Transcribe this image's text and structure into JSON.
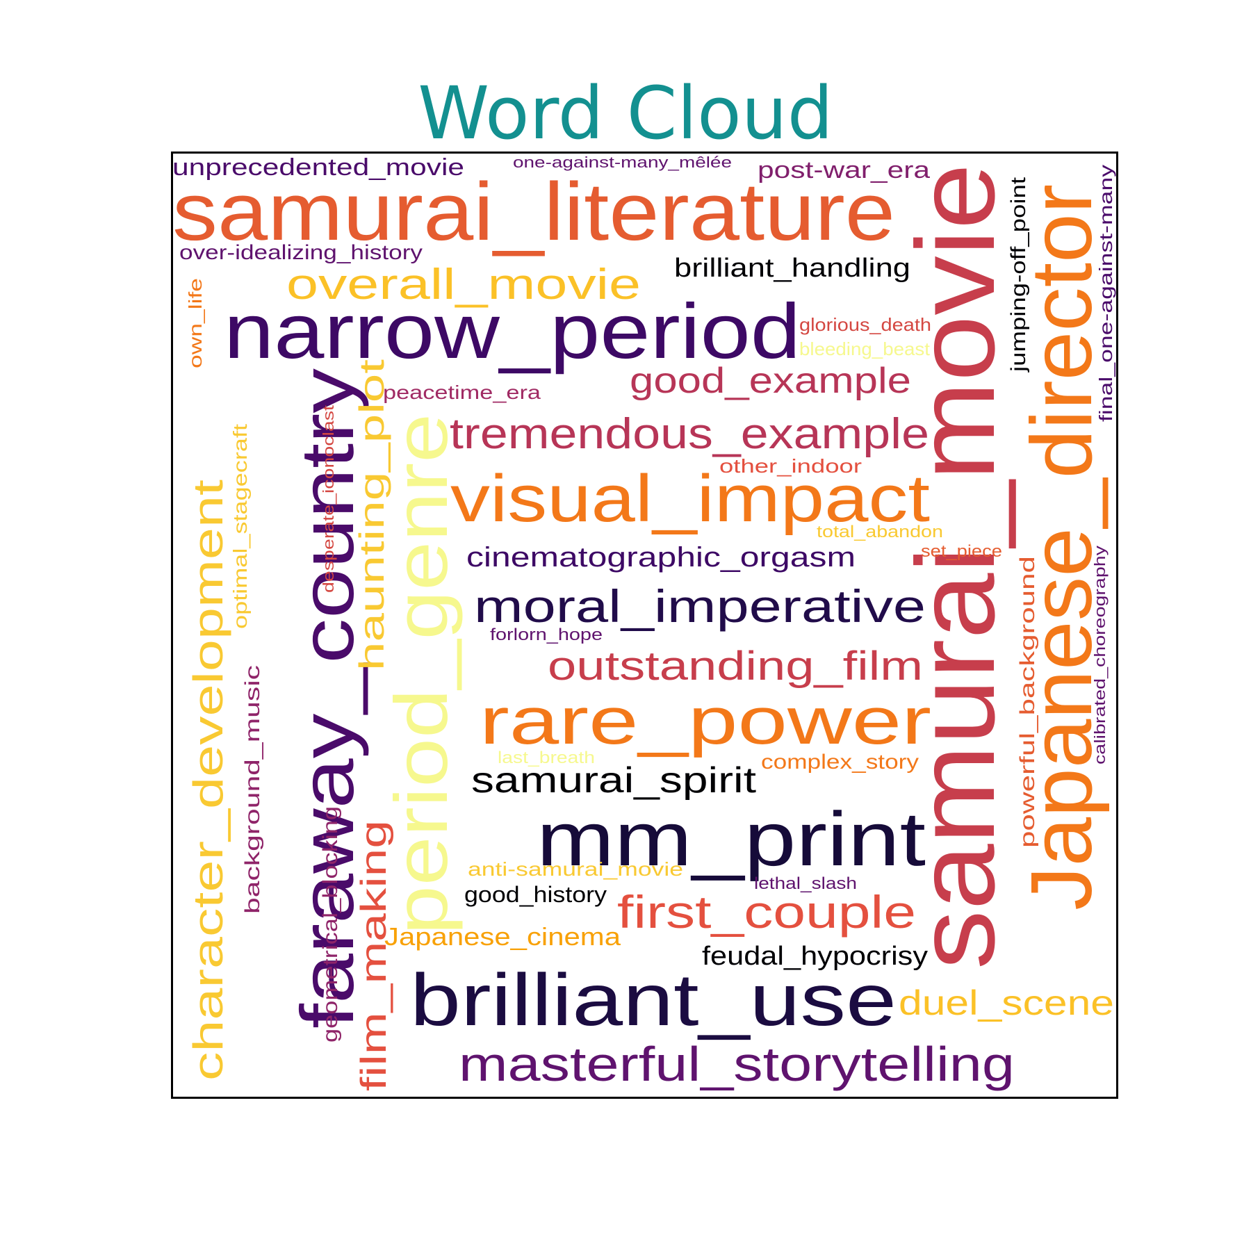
{
  "chart_data": {
    "type": "wordcloud",
    "title": "Word Cloud",
    "words": [
      {
        "text": "samurai_movie",
        "color": "#c73e4c",
        "vertical": true
      },
      {
        "text": "samurai_literature",
        "color": "#e55c30",
        "vertical": false
      },
      {
        "text": "Japanese_director",
        "color": "#f37819",
        "vertical": true
      },
      {
        "text": "narrow_period",
        "color": "#3d0965",
        "vertical": false
      },
      {
        "text": "faraway_country",
        "color": "#4a0b6a",
        "vertical": true
      },
      {
        "text": "period_genre",
        "color": "#f6f88e",
        "vertical": true
      },
      {
        "text": "mm_print",
        "color": "#160b39",
        "vertical": false
      },
      {
        "text": "brilliant_use",
        "color": "#1b0c41",
        "vertical": false
      },
      {
        "text": "rare_power",
        "color": "#f37819",
        "vertical": false
      },
      {
        "text": "visual_impact",
        "color": "#f37819",
        "vertical": false
      },
      {
        "text": "character_development",
        "color": "#f9c932",
        "vertical": true
      },
      {
        "text": "masterful_storytelling",
        "color": "#5f136e",
        "vertical": false
      },
      {
        "text": "moral_imperative",
        "color": "#210c4a",
        "vertical": false
      },
      {
        "text": "tremendous_example",
        "color": "#b73557",
        "vertical": false
      },
      {
        "text": "first_couple",
        "color": "#e4503f",
        "vertical": false
      },
      {
        "text": "overall_movie",
        "color": "#fbc127",
        "vertical": false
      },
      {
        "text": "haunting_plot",
        "color": "#f9c932",
        "vertical": true
      },
      {
        "text": "outstanding_film",
        "color": "#c73e4c",
        "vertical": false
      },
      {
        "text": "film_making",
        "color": "#e4503f",
        "vertical": true
      },
      {
        "text": "good_example",
        "color": "#b73557",
        "vertical": false
      },
      {
        "text": "duel_scene",
        "color": "#fbc127",
        "vertical": false
      },
      {
        "text": "samurai_spirit",
        "color": "#000004",
        "vertical": false
      },
      {
        "text": "cinematographic_orgasm",
        "color": "#3d0965",
        "vertical": false
      },
      {
        "text": "brilliant_handling",
        "color": "#000004",
        "vertical": false
      },
      {
        "text": "feudal_hypocrisy",
        "color": "#000004",
        "vertical": false
      },
      {
        "text": "powerful_background",
        "color": "#e55c30",
        "vertical": true
      },
      {
        "text": "Japanese_cinema",
        "color": "#f8a107",
        "vertical": false
      },
      {
        "text": "unprecedented_movie",
        "color": "#4a0b6a",
        "vertical": false
      },
      {
        "text": "post-war_era",
        "color": "#801f6c",
        "vertical": false
      },
      {
        "text": "background_music",
        "color": "#8f2469",
        "vertical": true
      },
      {
        "text": "jumping-off_point",
        "color": "#000004",
        "vertical": true
      },
      {
        "text": "optimal_stagecraft",
        "color": "#f9c932",
        "vertical": true
      },
      {
        "text": "over-idealizing_history",
        "color": "#5f136e",
        "vertical": false
      },
      {
        "text": "good_history",
        "color": "#000004",
        "vertical": false
      },
      {
        "text": "complex_story",
        "color": "#f37819",
        "vertical": false
      },
      {
        "text": "geometrical_blocking",
        "color": "#8f2469",
        "vertical": true
      },
      {
        "text": "final_one-against-many",
        "color": "#4a0b6a",
        "vertical": true
      },
      {
        "text": "peacetime_era",
        "color": "#a02a63",
        "vertical": false
      },
      {
        "text": "anti-samurai_movie",
        "color": "#f9c932",
        "vertical": false
      },
      {
        "text": "other_indoor",
        "color": "#e4503f",
        "vertical": false
      },
      {
        "text": "calibrated_choreography",
        "color": "#5f136e",
        "vertical": true
      },
      {
        "text": "glorious_death",
        "color": "#d44842",
        "vertical": false
      },
      {
        "text": "bleeding_beast",
        "color": "#f6f88e",
        "vertical": false
      },
      {
        "text": "desperate_iconoclast",
        "color": "#d44842",
        "vertical": true
      },
      {
        "text": "own_life",
        "color": "#f37819",
        "vertical": true
      },
      {
        "text": "total_abandon",
        "color": "#f9c932",
        "vertical": false
      },
      {
        "text": "set_piece",
        "color": "#e55c30",
        "vertical": false
      },
      {
        "text": "forlorn_hope",
        "color": "#5f136e",
        "vertical": false
      },
      {
        "text": "lethal_slash",
        "color": "#5f136e",
        "vertical": false
      },
      {
        "text": "last_breath",
        "color": "#f6f88e",
        "vertical": false
      },
      {
        "text": "one-against-many_mêlée",
        "color": "#5f136e",
        "vertical": false
      }
    ]
  }
}
